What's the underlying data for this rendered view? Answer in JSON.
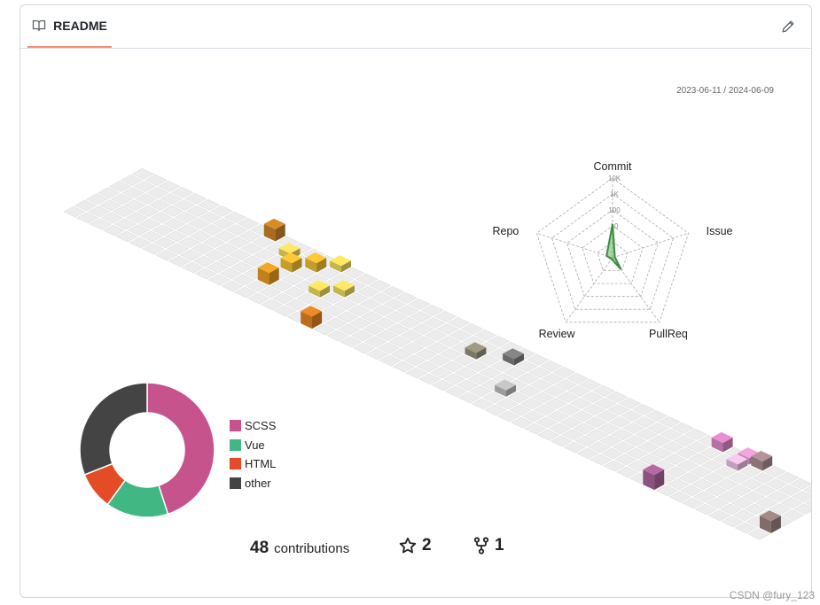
{
  "header": {
    "readme_label": "README",
    "readme_icon": "book-icon",
    "edit_icon": "pencil-icon"
  },
  "contributions": {
    "date_range": "2023-06-11 / 2024-06-09",
    "count": "48",
    "count_label": "contributions",
    "stars": "2",
    "forks": "1",
    "cells": [
      {
        "week": 13,
        "day": 2,
        "level": 3,
        "color": "#f5a623"
      },
      {
        "week": 12,
        "day": 5,
        "level": 1,
        "color": "#fee864"
      },
      {
        "week": 13,
        "day": 4,
        "level": 2,
        "color": "#ffc936"
      },
      {
        "week": 14,
        "day": 5,
        "level": 2,
        "color": "#ffc936"
      },
      {
        "week": 15,
        "day": 6,
        "level": 1,
        "color": "#fee864"
      },
      {
        "week": 18,
        "day": 0,
        "level": 3,
        "color": "#f08a24"
      },
      {
        "week": 16,
        "day": 3,
        "level": 1,
        "color": "#fee864"
      },
      {
        "week": 17,
        "day": 4,
        "level": 1,
        "color": "#fee864"
      },
      {
        "week": 10,
        "day": 6,
        "level": 3,
        "color": "#d98b28"
      },
      {
        "week": 27,
        "day": 4,
        "level": 1,
        "color": "#a09a83"
      },
      {
        "week": 29,
        "day": 5,
        "level": 1,
        "color": "#868686"
      },
      {
        "week": 31,
        "day": 2,
        "level": 1,
        "color": "#c8c8c8"
      },
      {
        "week": 44,
        "day": 0,
        "level": 4,
        "color": "#b56aa4"
      },
      {
        "week": 46,
        "day": 5,
        "level": 1,
        "color": "#f9c9f1"
      },
      {
        "week": 46,
        "day": 6,
        "level": 1,
        "color": "#f2a6dd"
      },
      {
        "week": 44,
        "day": 6,
        "level": 2,
        "color": "#ea8fd1"
      },
      {
        "week": 47,
        "day": 6,
        "level": 2,
        "color": "#b4949a"
      },
      {
        "week": 52,
        "day": 1,
        "level": 3,
        "color": "#a58a86"
      }
    ]
  },
  "radar": {
    "axes": [
      "Commit",
      "Issue",
      "PullReq",
      "Review",
      "Repo"
    ],
    "ticks": [
      "10K",
      "1K",
      "100",
      "10",
      "1"
    ],
    "values": [
      42,
      3,
      18,
      2,
      8
    ],
    "color": "#4caf50"
  },
  "languages": {
    "items": [
      {
        "name": "SCSS",
        "value": 45,
        "color": "#c6538c"
      },
      {
        "name": "Vue",
        "value": 15,
        "color": "#41b883"
      },
      {
        "name": "HTML",
        "value": 9,
        "color": "#e34c26"
      },
      {
        "name": "other",
        "value": 31,
        "color": "#444444"
      }
    ]
  },
  "watermark": "CSDN @fury_123"
}
